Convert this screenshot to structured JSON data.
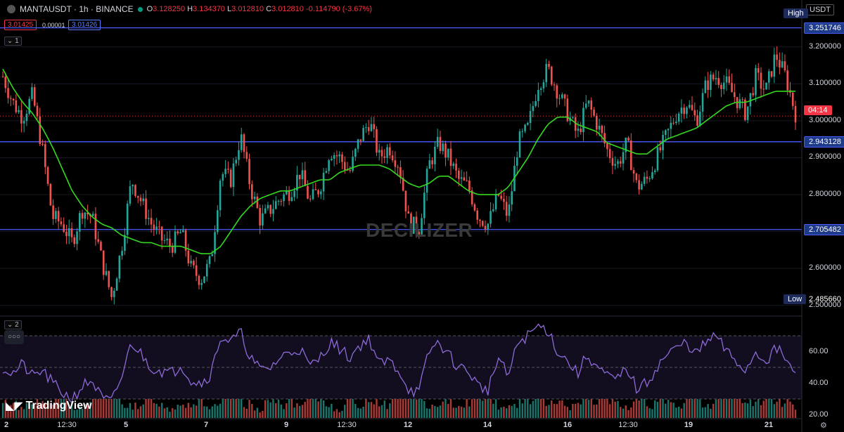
{
  "header": {
    "symbol_line": "MANTAUSDT · 1h · BINANCE",
    "o_label": "O",
    "o_value": "3.128250",
    "h_label": "H",
    "h_value": "3.134370",
    "l_label": "L",
    "l_value": "3.012810",
    "c_label": "C",
    "c_value": "3.012810",
    "change": "-0.114790 (-3.67%)",
    "bid": "3.01425",
    "spread": "0.00001",
    "ask": "3.01426",
    "pane1_ctl": "1",
    "pane2_ctl": "2",
    "currency": "USDT"
  },
  "watermark": "DECILIZER",
  "brand": "TradingView",
  "price_axis": {
    "ticks": [
      "3.200000",
      "3.100000",
      "3.000000",
      "2.900000",
      "2.800000",
      "2.700000",
      "2.600000",
      "2.500000"
    ],
    "high_label": "High",
    "low_label": "Low",
    "low_value": "2.485660",
    "countdown": "04:14"
  },
  "rsi_axis": {
    "ticks": [
      "60.00",
      "40.00",
      "20.00"
    ]
  },
  "time_axis": {
    "labels": [
      "2",
      "12:30",
      "5",
      "7",
      "9",
      "12:30",
      "12",
      "14",
      "16",
      "12:30",
      "19",
      "21"
    ]
  },
  "colors": {
    "up": "#26a69a",
    "down": "#ef5350",
    "ma": "#34d91f",
    "level": "#4c5dff",
    "current": "#f23645",
    "rsi": "#8e6ad8",
    "tag_blue": "#1e3a8a"
  },
  "chart_data": [
    {
      "type": "candlestick",
      "symbol": "MANTAUSDT",
      "interval": "1h",
      "exchange": "BINANCE",
      "ylim": [
        2.49,
        3.27
      ],
      "current_price": 3.01281,
      "horizontal_levels": [
        {
          "label": "3.251746",
          "value": 3.251746
        },
        {
          "label": "2.943128",
          "value": 2.943128
        },
        {
          "label": "2.705482",
          "value": 2.705482
        }
      ],
      "close_path": [
        3.12,
        3.05,
        3.01,
        3.07,
        2.92,
        2.74,
        2.72,
        2.67,
        2.76,
        2.74,
        2.62,
        2.52,
        2.66,
        2.84,
        2.78,
        2.72,
        2.68,
        2.66,
        2.7,
        2.6,
        2.57,
        2.62,
        2.86,
        2.84,
        2.96,
        2.82,
        2.73,
        2.76,
        2.79,
        2.81,
        2.86,
        2.78,
        2.82,
        2.92,
        2.9,
        2.86,
        2.95,
        3.0,
        2.9,
        2.93,
        2.88,
        2.72,
        2.71,
        2.88,
        2.94,
        2.9,
        2.84,
        2.82,
        2.74,
        2.72,
        2.8,
        2.74,
        2.94,
        2.98,
        3.1,
        3.14,
        3.08,
        3.02,
        2.96,
        3.05,
        2.99,
        2.92,
        2.88,
        2.94,
        2.82,
        2.84,
        2.9,
        2.96,
        3.02,
        3.05,
        3.0,
        3.1,
        3.12,
        3.1,
        3.06,
        3.02,
        3.12,
        3.08,
        3.18,
        3.12,
        3.02
      ],
      "ma_path": [
        3.14,
        3.09,
        3.05,
        3.02,
        2.98,
        2.93,
        2.87,
        2.81,
        2.77,
        2.74,
        2.72,
        2.71,
        2.69,
        2.68,
        2.67,
        2.67,
        2.66,
        2.66,
        2.66,
        2.65,
        2.64,
        2.64,
        2.66,
        2.7,
        2.74,
        2.77,
        2.79,
        2.8,
        2.81,
        2.81,
        2.82,
        2.83,
        2.84,
        2.84,
        2.86,
        2.87,
        2.88,
        2.88,
        2.88,
        2.87,
        2.85,
        2.83,
        2.82,
        2.83,
        2.85,
        2.85,
        2.83,
        2.81,
        2.8,
        2.8,
        2.8,
        2.82,
        2.86,
        2.9,
        2.95,
        2.99,
        3.01,
        3.01,
        2.99,
        2.98,
        2.97,
        2.94,
        2.93,
        2.92,
        2.91,
        2.91,
        2.93,
        2.95,
        2.96,
        2.97,
        2.98,
        3.0,
        3.02,
        3.04,
        3.05,
        3.05,
        3.06,
        3.07,
        3.08,
        3.08,
        3.08
      ]
    },
    {
      "type": "line",
      "name": "RSI",
      "ylim": [
        18,
        78
      ],
      "bands": [
        70,
        50,
        30
      ],
      "values": [
        50,
        46,
        52,
        44,
        48,
        40,
        34,
        30,
        38,
        42,
        30,
        28,
        44,
        66,
        58,
        50,
        48,
        46,
        52,
        42,
        40,
        46,
        70,
        66,
        72,
        56,
        48,
        50,
        56,
        60,
        62,
        50,
        56,
        66,
        62,
        56,
        64,
        68,
        52,
        54,
        48,
        36,
        34,
        60,
        66,
        58,
        50,
        48,
        38,
        36,
        56,
        44,
        66,
        70,
        76,
        74,
        60,
        54,
        46,
        58,
        50,
        44,
        42,
        50,
        36,
        40,
        50,
        58,
        62,
        66,
        58,
        66,
        70,
        60,
        54,
        48,
        60,
        54,
        62,
        56,
        44
      ]
    },
    {
      "type": "bar",
      "name": "Volume",
      "values": [
        3,
        4,
        2,
        5,
        3,
        4,
        6,
        3,
        2,
        5,
        7,
        9,
        4,
        3,
        2,
        6,
        3,
        2,
        4,
        3,
        5,
        2,
        3,
        6,
        4,
        3,
        2,
        5,
        3,
        4,
        2,
        6,
        5,
        3,
        2,
        4,
        3,
        5,
        4,
        3,
        6,
        8,
        4,
        3,
        2,
        5,
        3,
        4,
        6,
        7,
        3,
        2,
        4,
        5,
        6,
        3,
        4,
        2,
        3,
        5,
        4,
        6,
        3,
        2,
        5,
        4,
        3,
        4,
        2,
        5,
        6,
        3,
        4,
        5,
        7,
        4,
        3,
        6,
        5,
        4,
        3
      ]
    }
  ]
}
